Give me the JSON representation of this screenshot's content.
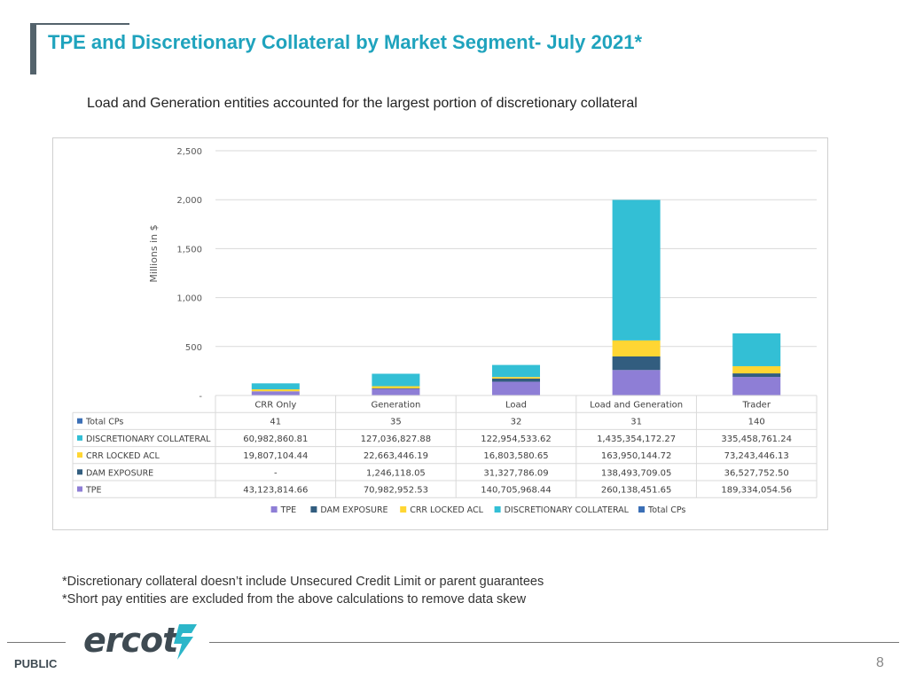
{
  "title": "TPE and Discretionary Collateral by Market Segment- July 2021*",
  "subtitle": "Load and Generation entities accounted for the largest portion of discretionary collateral",
  "footnotes": [
    "*Discretionary collateral doesn’t include Unsecured Credit Limit or parent guarantees",
    "*Short pay entities are excluded from the above calculations to remove data skew"
  ],
  "footer": {
    "label": "PUBLIC",
    "page": "8",
    "logo_text": "ercot"
  },
  "colors": {
    "title": "#1fa3bd",
    "tpe": "#8e7ed6",
    "dam": "#325d7f",
    "crr": "#ffd633",
    "disc": "#33bfd5",
    "cps": "#3b6fb6"
  },
  "chart_data": {
    "type": "bar",
    "stacked": true,
    "ylabel": "Millions in $",
    "ylim": [
      0,
      2500
    ],
    "yticks": [
      "-",
      "500",
      "1,000",
      "1,500",
      "2,000",
      "2,500"
    ],
    "categories": [
      "CRR Only",
      "Generation",
      "Load",
      "Load and Generation",
      "Trader"
    ],
    "series": [
      {
        "name": "TPE",
        "key": "tpe",
        "values": [
          43.12,
          70.98,
          140.71,
          260.14,
          189.33
        ],
        "labels": [
          "43,123,814.66",
          "70,982,952.53",
          "140,705,968.44",
          "260,138,451.65",
          "189,334,054.56"
        ]
      },
      {
        "name": "DAM  EXPOSURE",
        "key": "dam",
        "values": [
          0,
          1.25,
          31.33,
          138.49,
          36.53
        ],
        "labels": [
          "-",
          "1,246,118.05",
          "31,327,786.09",
          "138,493,709.05",
          "36,527,752.50"
        ]
      },
      {
        "name": "CRR LOCKED ACL",
        "key": "crr",
        "values": [
          19.81,
          22.66,
          16.8,
          163.95,
          73.24
        ],
        "labels": [
          "19,807,104.44",
          "22,663,446.19",
          "16,803,580.65",
          "163,950,144.72",
          "73,243,446.13"
        ]
      },
      {
        "name": "DISCRETIONARY COLLATERAL",
        "key": "disc",
        "values": [
          60.98,
          127.04,
          122.95,
          1435.35,
          335.46
        ],
        "labels": [
          "60,982,860.81",
          "127,036,827.88",
          "122,954,533.62",
          "1,435,354,172.27",
          "335,458,761.24"
        ]
      },
      {
        "name": "Total CPs",
        "key": "cps",
        "values": [
          41,
          35,
          32,
          31,
          140
        ],
        "labels": [
          "41",
          "35",
          "32",
          "31",
          "140"
        ]
      }
    ],
    "table_row_order": [
      "cps",
      "disc",
      "crr",
      "dam",
      "tpe"
    ],
    "legend_order": [
      "tpe",
      "dam",
      "crr",
      "disc",
      "cps"
    ],
    "legend": "bottom",
    "grid": true
  }
}
